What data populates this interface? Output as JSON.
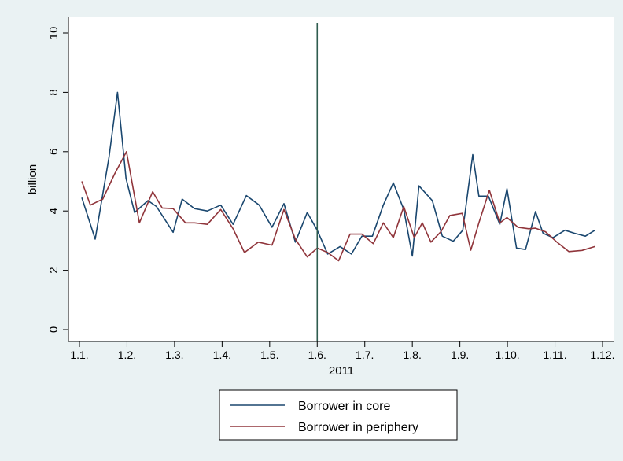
{
  "chart_data": {
    "type": "line",
    "xlabel": "2011",
    "ylabel": "billion",
    "ylim": [
      0,
      10
    ],
    "yticks": [
      0,
      2,
      4,
      6,
      8,
      10
    ],
    "xticks": [
      {
        "label": "1.1.",
        "x": 0
      },
      {
        "label": "1.2.",
        "x": 1
      },
      {
        "label": "1.3.",
        "x": 2
      },
      {
        "label": "1.4.",
        "x": 3
      },
      {
        "label": "1.5.",
        "x": 4
      },
      {
        "label": "1.6.",
        "x": 5
      },
      {
        "label": "1.7.",
        "x": 6
      },
      {
        "label": "1.8.",
        "x": 7
      },
      {
        "label": "1.9.",
        "x": 8
      },
      {
        "label": "1.10.",
        "x": 9
      },
      {
        "label": "1.11.",
        "x": 10
      },
      {
        "label": "1.12.",
        "x": 11
      }
    ],
    "xlim": [
      0,
      11
    ],
    "vline_x": 5,
    "grid": false,
    "legend": "bottom",
    "series": [
      {
        "name": "Borrower in core",
        "color": "#1a476f",
        "x": [
          0.05,
          0.33,
          0.62,
          0.8,
          0.98,
          1.16,
          1.44,
          1.62,
          1.97,
          2.16,
          2.42,
          2.69,
          2.97,
          3.23,
          3.51,
          3.78,
          4.05,
          4.3,
          4.54,
          4.79,
          5.0,
          5.22,
          5.48,
          5.72,
          5.94,
          6.16,
          6.39,
          6.6,
          6.82,
          7.0,
          7.14,
          7.42,
          7.63,
          7.86,
          8.06,
          8.27,
          8.4,
          8.6,
          8.84,
          8.99,
          9.19,
          9.38,
          9.59,
          9.75,
          9.96,
          10.21,
          10.41,
          10.64,
          10.84
        ],
        "y": [
          4.45,
          3.05,
          5.8,
          8.0,
          5.1,
          3.95,
          4.35,
          4.15,
          3.28,
          4.4,
          4.08,
          4.0,
          4.2,
          3.55,
          4.52,
          4.2,
          3.45,
          4.25,
          2.95,
          3.95,
          3.35,
          2.55,
          2.8,
          2.55,
          3.15,
          3.15,
          4.2,
          4.95,
          4.05,
          2.48,
          4.85,
          4.35,
          3.15,
          2.98,
          3.35,
          5.9,
          4.5,
          4.5,
          3.55,
          4.75,
          2.75,
          2.7,
          3.98,
          3.25,
          3.1,
          3.35,
          3.25,
          3.15,
          3.35
        ]
      },
      {
        "name": "Borrower in periphery",
        "color": "#90353b",
        "x": [
          0.05,
          0.23,
          0.49,
          0.74,
          0.99,
          1.26,
          1.54,
          1.74,
          1.97,
          2.23,
          2.42,
          2.69,
          2.97,
          3.23,
          3.47,
          3.76,
          4.05,
          4.3,
          4.54,
          4.79,
          5.0,
          5.22,
          5.45,
          5.69,
          5.94,
          6.18,
          6.39,
          6.6,
          6.82,
          7.04,
          7.21,
          7.39,
          7.6,
          7.79,
          8.05,
          8.23,
          8.4,
          8.62,
          8.84,
          8.99,
          9.22,
          9.45,
          9.59,
          9.8,
          10.04,
          10.29,
          10.57,
          10.84
        ],
        "y": [
          5.0,
          4.2,
          4.4,
          5.25,
          6.0,
          3.6,
          4.65,
          4.1,
          4.08,
          3.6,
          3.6,
          3.55,
          4.05,
          3.4,
          2.6,
          2.95,
          2.85,
          4.05,
          3.05,
          2.45,
          2.75,
          2.6,
          2.32,
          3.22,
          3.22,
          2.9,
          3.6,
          3.1,
          4.15,
          3.1,
          3.6,
          2.95,
          3.3,
          3.85,
          3.92,
          2.68,
          3.6,
          4.7,
          3.6,
          3.78,
          3.45,
          3.4,
          3.42,
          3.3,
          2.95,
          2.63,
          2.67,
          2.8
        ]
      }
    ]
  }
}
